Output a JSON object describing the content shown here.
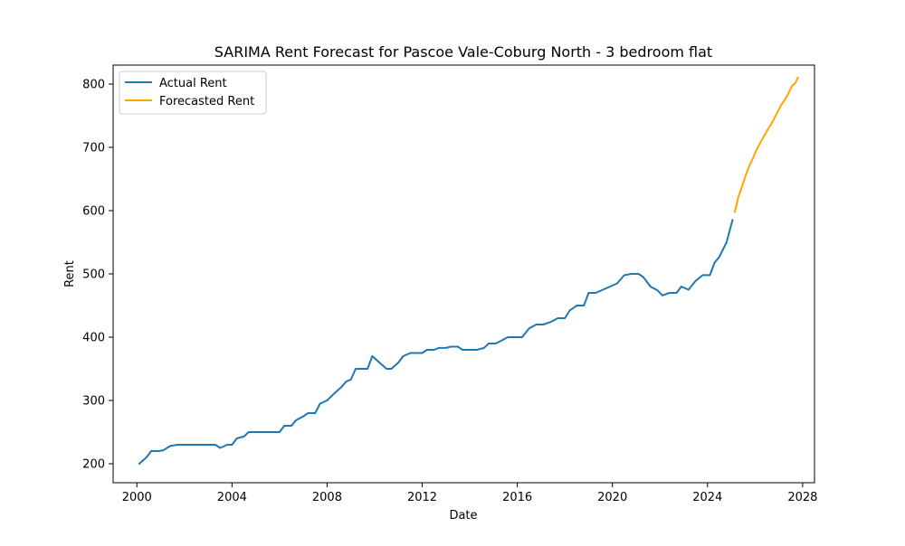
{
  "chart_data": {
    "type": "line",
    "title": "SARIMA Rent Forecast for Pascoe Vale-Coburg North - 3 bedroom flat",
    "xlabel": "Date",
    "ylabel": "Rent",
    "xlim": [
      1999.0,
      2028.5
    ],
    "ylim": [
      170,
      830
    ],
    "xticks": [
      2000,
      2004,
      2008,
      2012,
      2016,
      2020,
      2024,
      2028
    ],
    "yticks": [
      200,
      300,
      400,
      500,
      600,
      700,
      800
    ],
    "grid": false,
    "legend_position": "top-left",
    "series": [
      {
        "name": "Actual Rent",
        "color": "#1f77b4",
        "points": [
          [
            2000.1,
            200
          ],
          [
            2000.4,
            210
          ],
          [
            2000.6,
            220
          ],
          [
            2000.9,
            220
          ],
          [
            2001.1,
            221
          ],
          [
            2001.4,
            228
          ],
          [
            2001.7,
            230
          ],
          [
            2002.0,
            230
          ],
          [
            2002.5,
            230
          ],
          [
            2003.0,
            230
          ],
          [
            2003.3,
            230
          ],
          [
            2003.5,
            225
          ],
          [
            2003.8,
            230
          ],
          [
            2004.0,
            230
          ],
          [
            2004.2,
            240
          ],
          [
            2004.5,
            243
          ],
          [
            2004.7,
            250
          ],
          [
            2005.0,
            250
          ],
          [
            2005.5,
            250
          ],
          [
            2006.0,
            250
          ],
          [
            2006.2,
            260
          ],
          [
            2006.5,
            260
          ],
          [
            2006.7,
            269
          ],
          [
            2007.0,
            275
          ],
          [
            2007.2,
            280
          ],
          [
            2007.5,
            280
          ],
          [
            2007.7,
            295
          ],
          [
            2008.0,
            300
          ],
          [
            2008.3,
            311
          ],
          [
            2008.6,
            321
          ],
          [
            2008.8,
            330
          ],
          [
            2009.0,
            333
          ],
          [
            2009.2,
            350
          ],
          [
            2009.5,
            350
          ],
          [
            2009.7,
            350
          ],
          [
            2009.9,
            370
          ],
          [
            2010.2,
            360
          ],
          [
            2010.5,
            350
          ],
          [
            2010.7,
            350
          ],
          [
            2011.0,
            360
          ],
          [
            2011.2,
            370
          ],
          [
            2011.5,
            375
          ],
          [
            2011.8,
            375
          ],
          [
            2012.0,
            375
          ],
          [
            2012.2,
            380
          ],
          [
            2012.5,
            380
          ],
          [
            2012.7,
            383
          ],
          [
            2013.0,
            383
          ],
          [
            2013.2,
            385
          ],
          [
            2013.5,
            385
          ],
          [
            2013.7,
            380
          ],
          [
            2014.0,
            380
          ],
          [
            2014.3,
            380
          ],
          [
            2014.6,
            383
          ],
          [
            2014.8,
            390
          ],
          [
            2015.1,
            390
          ],
          [
            2015.3,
            394
          ],
          [
            2015.6,
            400
          ],
          [
            2016.0,
            400
          ],
          [
            2016.2,
            400
          ],
          [
            2016.5,
            414
          ],
          [
            2016.8,
            420
          ],
          [
            2017.1,
            420
          ],
          [
            2017.4,
            424
          ],
          [
            2017.7,
            430
          ],
          [
            2018.0,
            430
          ],
          [
            2018.2,
            442
          ],
          [
            2018.5,
            450
          ],
          [
            2018.8,
            450
          ],
          [
            2019.0,
            470
          ],
          [
            2019.3,
            470
          ],
          [
            2019.6,
            475
          ],
          [
            2019.9,
            480
          ],
          [
            2020.2,
            485
          ],
          [
            2020.5,
            498
          ],
          [
            2020.8,
            500
          ],
          [
            2021.1,
            500
          ],
          [
            2021.3,
            495
          ],
          [
            2021.6,
            480
          ],
          [
            2021.9,
            474
          ],
          [
            2022.1,
            466
          ],
          [
            2022.4,
            470
          ],
          [
            2022.7,
            470
          ],
          [
            2022.9,
            480
          ],
          [
            2023.2,
            475
          ],
          [
            2023.5,
            489
          ],
          [
            2023.8,
            498
          ],
          [
            2024.1,
            498
          ],
          [
            2024.3,
            518
          ],
          [
            2024.5,
            527
          ],
          [
            2024.8,
            550
          ],
          [
            2025.05,
            585
          ]
        ]
      },
      {
        "name": "Forecasted Rent",
        "color": "#ffa500",
        "points": [
          [
            2025.15,
            598
          ],
          [
            2025.3,
            622
          ],
          [
            2025.45,
            638
          ],
          [
            2025.6,
            655
          ],
          [
            2025.75,
            670
          ],
          [
            2025.9,
            682
          ],
          [
            2026.05,
            695
          ],
          [
            2026.2,
            706
          ],
          [
            2026.35,
            716
          ],
          [
            2026.5,
            726
          ],
          [
            2026.65,
            735
          ],
          [
            2026.8,
            745
          ],
          [
            2026.95,
            756
          ],
          [
            2027.1,
            767
          ],
          [
            2027.25,
            775
          ],
          [
            2027.4,
            785
          ],
          [
            2027.55,
            797
          ],
          [
            2027.7,
            802
          ],
          [
            2027.8,
            810
          ]
        ]
      }
    ]
  }
}
